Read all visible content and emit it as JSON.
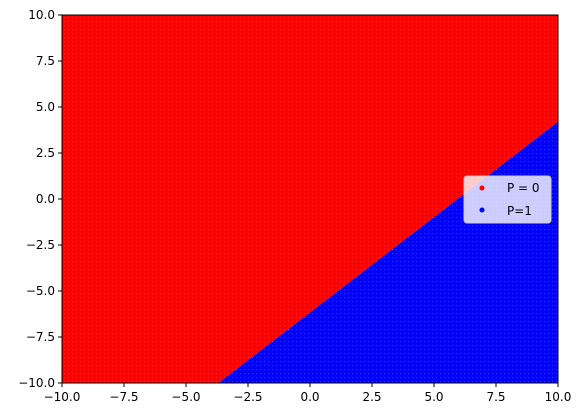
{
  "chart_data": {
    "type": "scatter",
    "title": "",
    "xlabel": "",
    "ylabel": "",
    "xlim": [
      -10.0,
      10.0
    ],
    "ylim": [
      -10.0,
      10.0
    ],
    "x_ticks": [
      "−10.0",
      "−7.5",
      "−5.0",
      "−2.5",
      "0.0",
      "2.5",
      "5.0",
      "7.5",
      "10.0"
    ],
    "y_ticks": [
      "−10.0",
      "−7.5",
      "−5.0",
      "−2.5",
      "0.0",
      "2.5",
      "5.0",
      "7.5",
      "10.0"
    ],
    "x_tick_values": [
      -10,
      -7.5,
      -5,
      -2.5,
      0,
      2.5,
      5,
      7.5,
      10
    ],
    "y_tick_values": [
      -10,
      -7.5,
      -5,
      -2.5,
      0,
      2.5,
      5,
      7.5,
      10
    ],
    "grid": false,
    "legend_position": "center-right",
    "decision_boundary": {
      "description_points": [
        [
          -3.7,
          -10.0
        ],
        [
          10.0,
          4.2
        ]
      ]
    },
    "series": [
      {
        "name": "P = 0",
        "color": "#ff0000",
        "region": "above boundary"
      },
      {
        "name": "P=1",
        "color": "#0000ff",
        "region": "below boundary"
      }
    ]
  }
}
